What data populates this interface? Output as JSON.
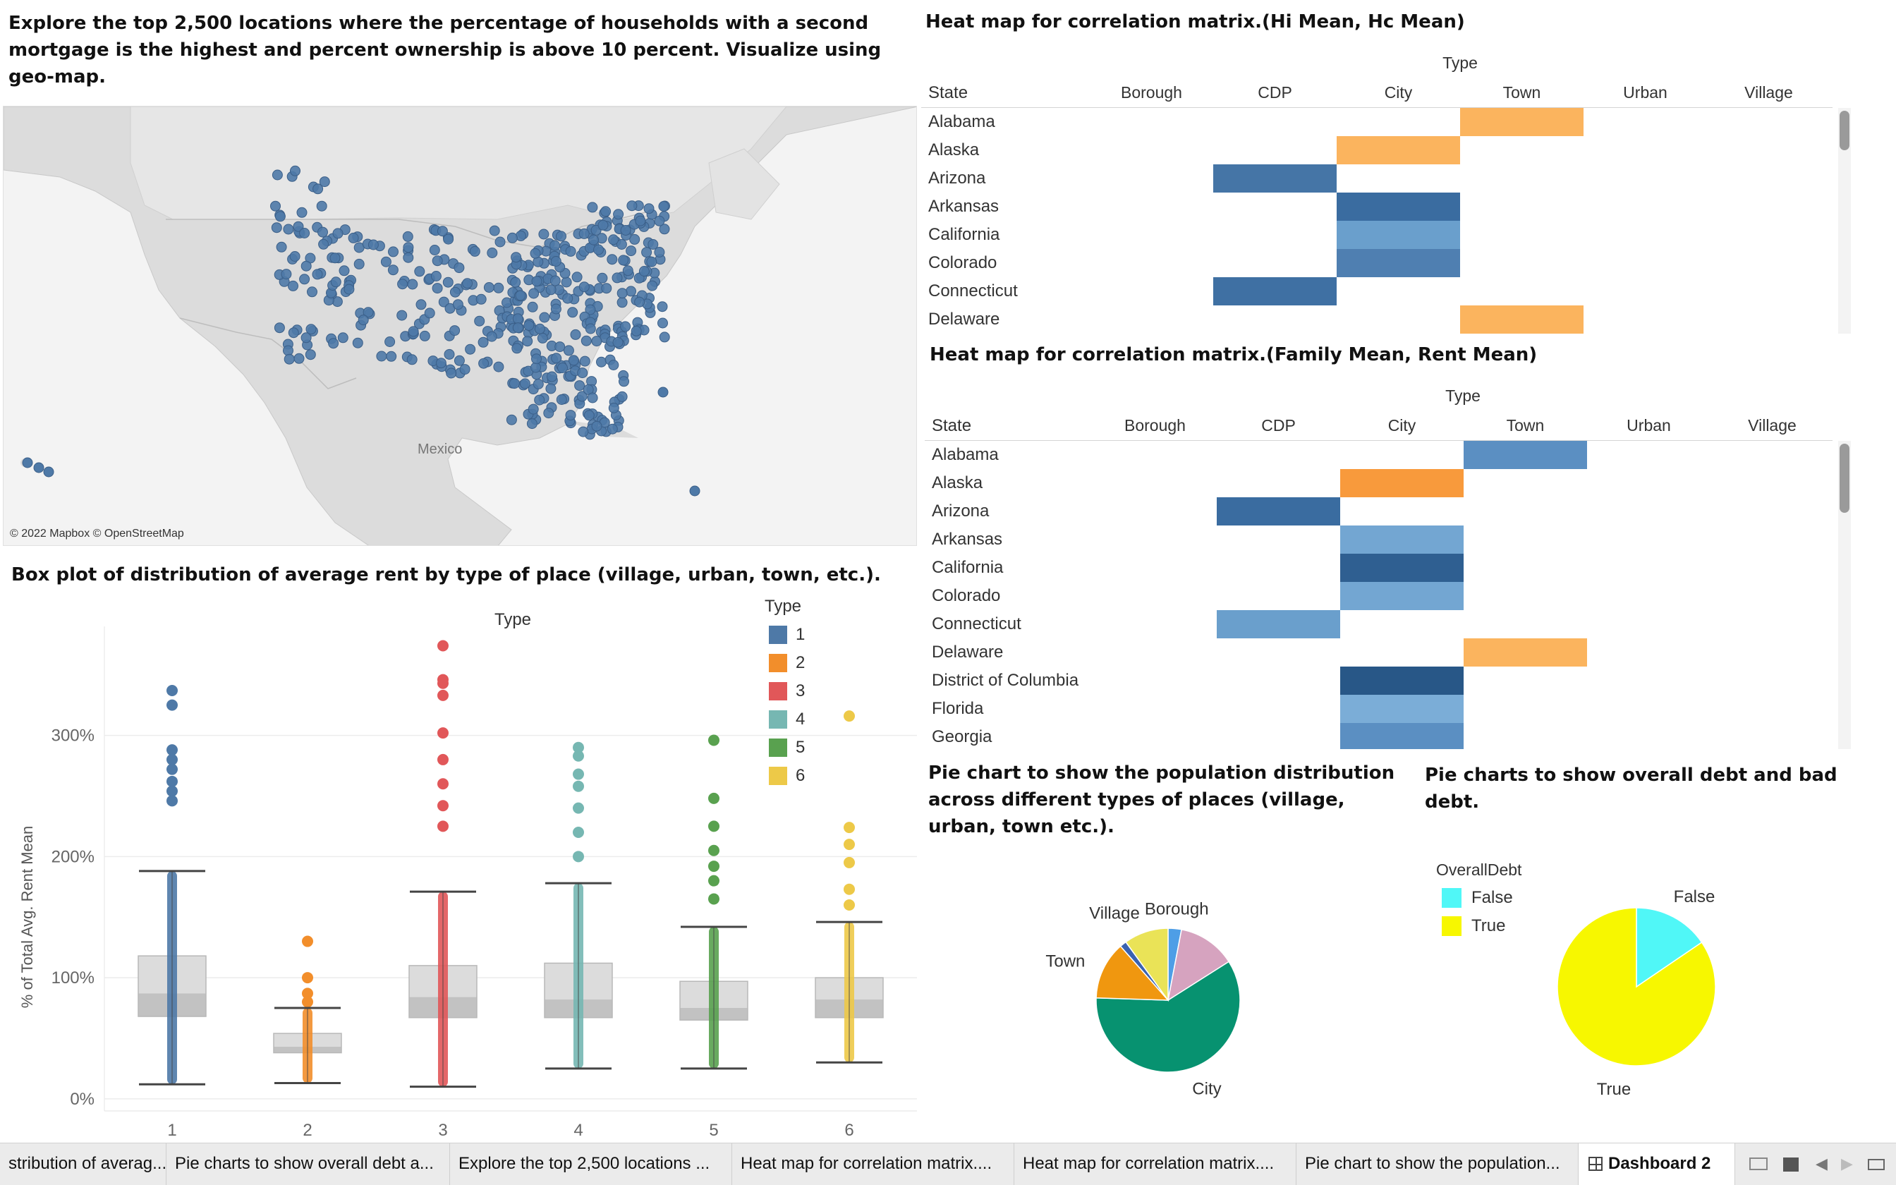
{
  "map_panel": {
    "title": "Explore the top 2,500 locations where the percentage of households with a second mortgage is the highest and percent ownership is above 10 percent. Visualize using geo-map.",
    "credit": "© 2022 Mapbox © OpenStreetMap",
    "label": "Mexico",
    "marker_color": "#4e79a7"
  },
  "heatmap1": {
    "title": "Heat map for correlation matrix.(Hi Mean, Hc Mean)",
    "col_group": "Type",
    "row_header": "State",
    "columns": [
      "Borough",
      "CDP",
      "City",
      "Town",
      "Urban",
      "Village"
    ],
    "rows": [
      "Alabama",
      "Alaska",
      "Arizona",
      "Arkansas",
      "California",
      "Colorado",
      "Connecticut",
      "Delaware"
    ],
    "cells": [
      {
        "row": "Alabama",
        "col": "Town",
        "color": "#fbb45e"
      },
      {
        "row": "Alaska",
        "col": "City",
        "color": "#fbb45e"
      },
      {
        "row": "Arizona",
        "col": "CDP",
        "color": "#4575a6"
      },
      {
        "row": "Arkansas",
        "col": "City",
        "color": "#3a6ca0"
      },
      {
        "row": "California",
        "col": "City",
        "color": "#6a9fcc"
      },
      {
        "row": "Colorado",
        "col": "City",
        "color": "#4f7fb1"
      },
      {
        "row": "Connecticut",
        "col": "CDP",
        "color": "#3f70a3"
      },
      {
        "row": "Delaware",
        "col": "Town",
        "color": "#fbb45e"
      }
    ]
  },
  "heatmap2": {
    "title": "Heat map for correlation matrix.(Family Mean, Rent Mean)",
    "col_group": "Type",
    "row_header": "State",
    "columns": [
      "Borough",
      "CDP",
      "City",
      "Town",
      "Urban",
      "Village"
    ],
    "rows": [
      "Alabama",
      "Alaska",
      "Arizona",
      "Arkansas",
      "California",
      "Colorado",
      "Connecticut",
      "Delaware",
      "District of Columbia",
      "Florida",
      "Georgia"
    ],
    "cells": [
      {
        "row": "Alabama",
        "col": "Town",
        "color": "#5b8fc2"
      },
      {
        "row": "Alaska",
        "col": "City",
        "color": "#f89a3c"
      },
      {
        "row": "Arizona",
        "col": "CDP",
        "color": "#3a6ca0"
      },
      {
        "row": "Arkansas",
        "col": "City",
        "color": "#73a6d2"
      },
      {
        "row": "California",
        "col": "City",
        "color": "#2f5f91"
      },
      {
        "row": "Colorado",
        "col": "City",
        "color": "#73a6d2"
      },
      {
        "row": "Connecticut",
        "col": "CDP",
        "color": "#6a9fcc"
      },
      {
        "row": "Delaware",
        "col": "Town",
        "color": "#fbb45e"
      },
      {
        "row": "District of Columbia",
        "col": "City",
        "color": "#285787"
      },
      {
        "row": "Florida",
        "col": "City",
        "color": "#7badd7"
      },
      {
        "row": "Georgia",
        "col": "City",
        "color": "#5b8fc2"
      }
    ]
  },
  "boxplot": {
    "title": "Box plot of distribution of average rent by type of place (village, urban, town, etc.).",
    "col_title": "Type",
    "ylabel": "% of Total Avg. Rent Mean",
    "legend_title": "Type",
    "legend": [
      {
        "label": "1",
        "color": "#4e79a7"
      },
      {
        "label": "2",
        "color": "#f28e2b"
      },
      {
        "label": "3",
        "color": "#e15759"
      },
      {
        "label": "4",
        "color": "#76b7b2"
      },
      {
        "label": "5",
        "color": "#59a14f"
      },
      {
        "label": "6",
        "color": "#edc948"
      }
    ]
  },
  "pie_population": {
    "title": "Pie chart to show the population distribution across different types of places (village, urban, town etc.)."
  },
  "pie_debt": {
    "title": "Pie charts to show overall debt and bad debt.",
    "legend_title": "OverallDebt"
  },
  "tabs": [
    "stribution of averag...",
    "Pie charts to show overall debt a...",
    "Explore the top 2,500 locations ...",
    "Heat map for correlation matrix....",
    "Heat map for correlation matrix....",
    "Pie chart to show the population...",
    "Dashboard 2"
  ],
  "chart_data": [
    {
      "type": "box",
      "title": "Box plot of distribution of average rent by type of place (village, urban, town, etc.).",
      "xlabel": "Type",
      "ylabel": "% of Total Avg. Rent Mean",
      "y_ticks": [
        "0%",
        "100%",
        "200%",
        "300%"
      ],
      "ylim": [
        -10,
        390
      ],
      "categories": [
        "1",
        "2",
        "3",
        "4",
        "5",
        "6"
      ],
      "colors": [
        "#4e79a7",
        "#f28e2b",
        "#e15759",
        "#76b7b2",
        "#59a14f",
        "#edc948"
      ],
      "boxes": [
        {
          "category": "1",
          "whisker_low": 12,
          "q1": 68,
          "median": 87,
          "q3": 118,
          "whisker_high": 188,
          "max": 337,
          "outliers": [
            288,
            280,
            272,
            262,
            254,
            246,
            325,
            337
          ]
        },
        {
          "category": "2",
          "whisker_low": 13,
          "q1": 38,
          "median": 43,
          "q3": 54,
          "whisker_high": 75,
          "max": 130,
          "outliers": [
            80,
            87,
            100,
            130
          ]
        },
        {
          "category": "3",
          "whisker_low": 10,
          "q1": 67,
          "median": 84,
          "q3": 110,
          "whisker_high": 171,
          "max": 374,
          "outliers": [
            225,
            242,
            260,
            280,
            302,
            333,
            343,
            346,
            374
          ]
        },
        {
          "category": "4",
          "whisker_low": 25,
          "q1": 67,
          "median": 82,
          "q3": 112,
          "whisker_high": 178,
          "max": 290,
          "outliers": [
            200,
            220,
            240,
            258,
            268,
            283,
            290
          ]
        },
        {
          "category": "5",
          "whisker_low": 25,
          "q1": 65,
          "median": 75,
          "q3": 97,
          "whisker_high": 142,
          "max": 296,
          "outliers": [
            165,
            180,
            192,
            205,
            225,
            248,
            296
          ]
        },
        {
          "category": "6",
          "whisker_low": 30,
          "q1": 67,
          "median": 82,
          "q3": 100,
          "whisker_high": 146,
          "max": 316,
          "outliers": [
            160,
            173,
            195,
            210,
            224,
            316
          ]
        }
      ]
    },
    {
      "type": "pie",
      "title": "Pie chart to show the population distribution across different types of places (village, urban, town etc.).",
      "slices": [
        {
          "label": "Borough",
          "value": 3.0,
          "color": "#4e9ee6"
        },
        {
          "label": "",
          "value": 13.0,
          "color": "#d6a3bf"
        },
        {
          "label": "City",
          "value": 59.5,
          "color": "#079270"
        },
        {
          "label": "Town",
          "value": 13.0,
          "color": "#f0970f"
        },
        {
          "label": "",
          "value": 1.5,
          "color": "#3a62b0"
        },
        {
          "label": "Village",
          "value": 10.0,
          "color": "#eae357"
        }
      ]
    },
    {
      "type": "pie",
      "title": "Pie charts to show overall debt and bad debt.",
      "legend": [
        "False",
        "True"
      ],
      "slices": [
        {
          "label": "False",
          "value": 15.5,
          "color": "#50f7f7"
        },
        {
          "label": "True",
          "value": 84.5,
          "color": "#f7f700"
        }
      ]
    }
  ]
}
